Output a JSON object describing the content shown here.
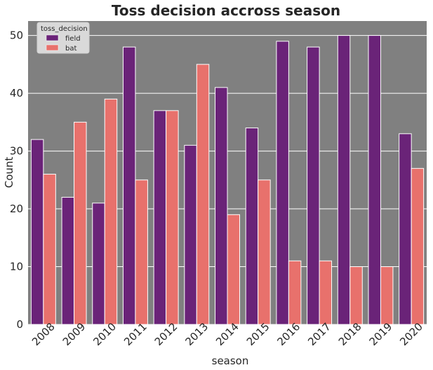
{
  "chart_data": {
    "type": "bar",
    "title": "Toss decision accross season",
    "xlabel": "season",
    "ylabel": "Count",
    "categories": [
      "2008",
      "2009",
      "2010",
      "2011",
      "2012",
      "2013",
      "2014",
      "2015",
      "2016",
      "2017",
      "2018",
      "2019",
      "2020"
    ],
    "series": [
      {
        "name": "field",
        "color": "#6a2378",
        "values": [
          32,
          22,
          21,
          48,
          37,
          31,
          41,
          34,
          49,
          48,
          50,
          50,
          33
        ]
      },
      {
        "name": "bat",
        "color": "#e8716c",
        "values": [
          26,
          35,
          39,
          25,
          37,
          45,
          19,
          25,
          11,
          11,
          10,
          10,
          27
        ]
      }
    ],
    "ylim": [
      0,
      52.5
    ],
    "yticks": [
      0,
      10,
      20,
      30,
      40,
      50
    ],
    "grid": true,
    "plot_background": "#808080",
    "legend": {
      "title": "toss_decision",
      "placement": "top-left"
    }
  }
}
